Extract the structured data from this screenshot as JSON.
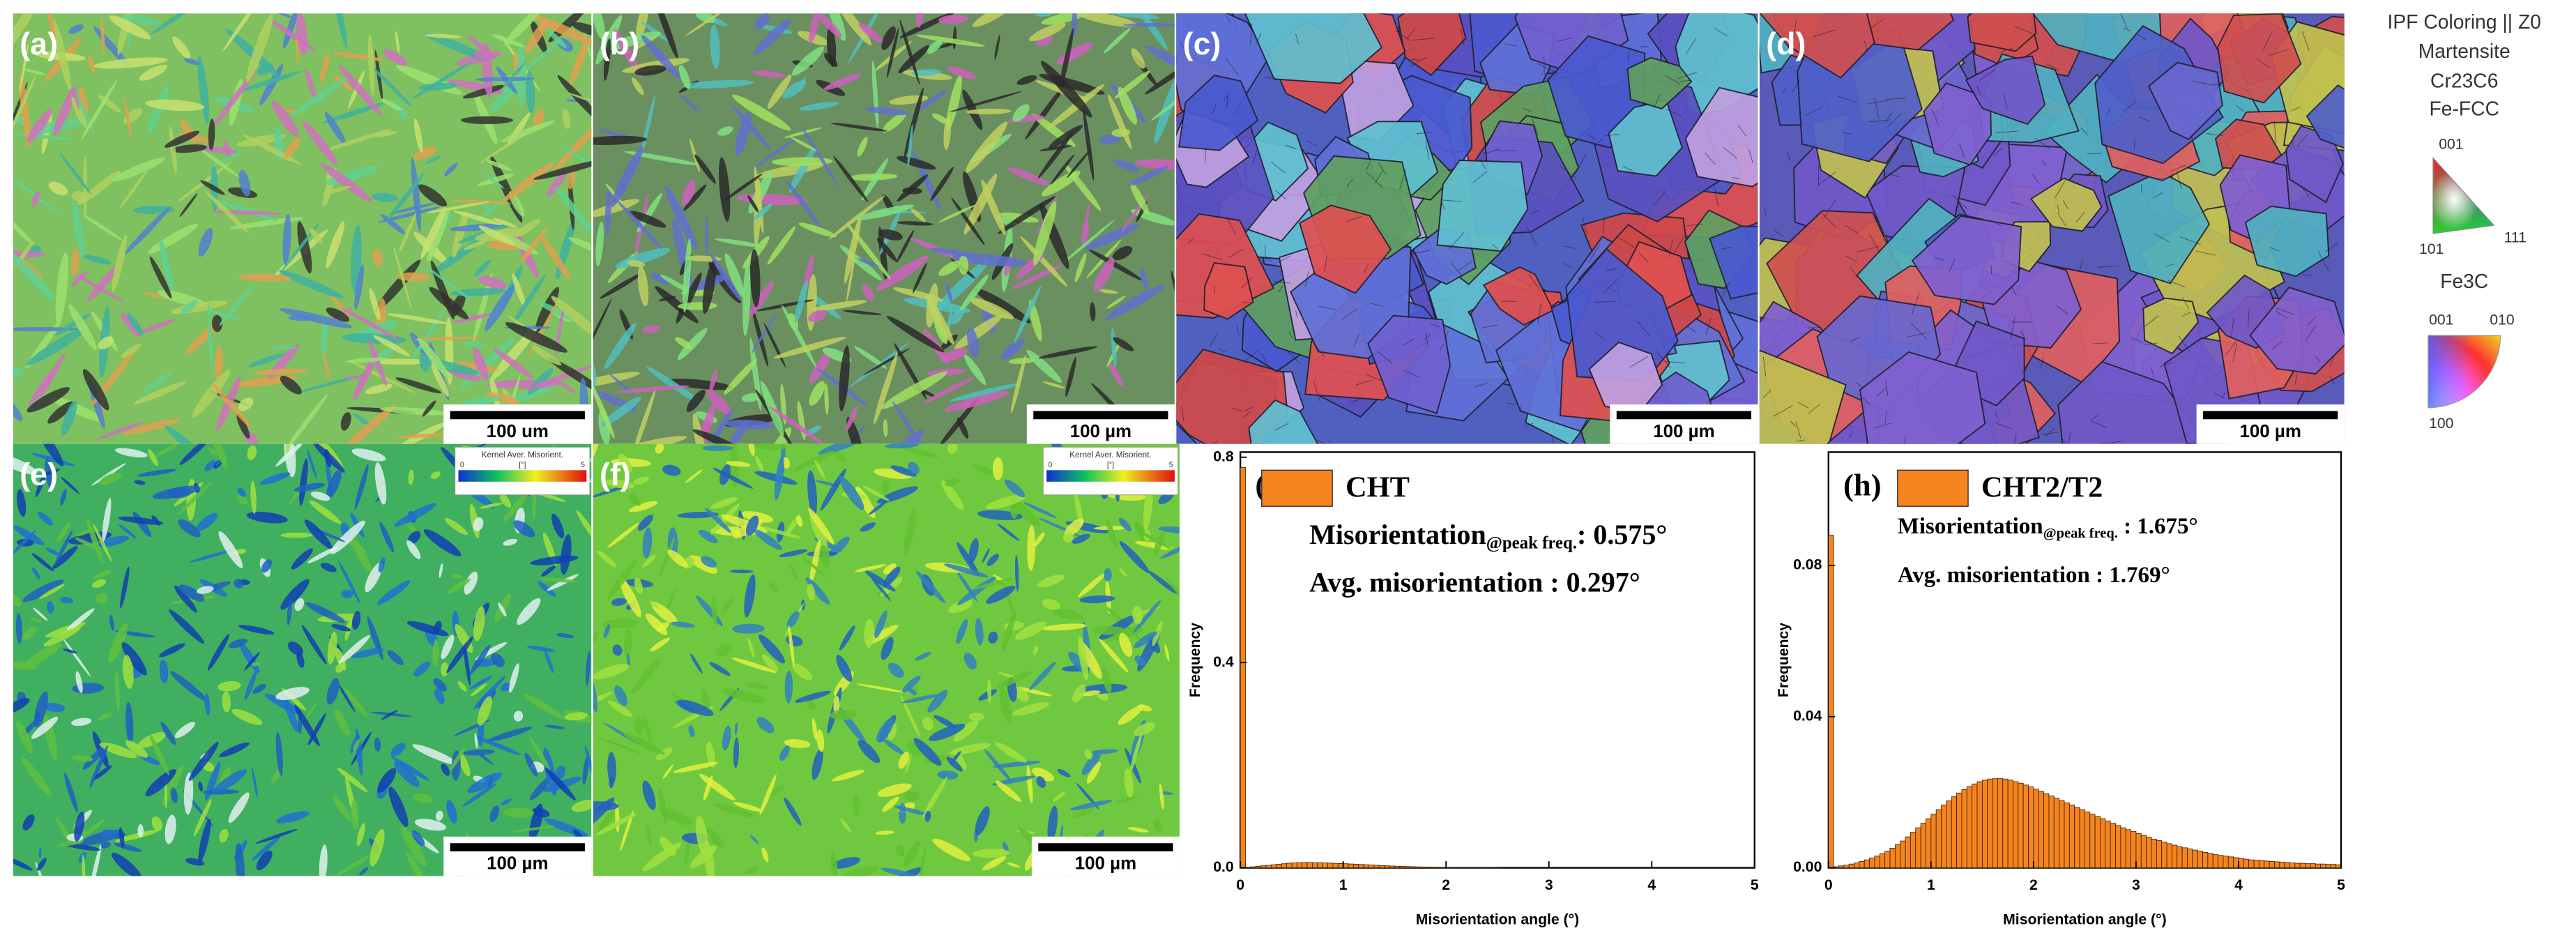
{
  "panels": [
    {
      "label": "(a)",
      "scale_bar": "100 um"
    },
    {
      "label": "(b)",
      "scale_bar": "100 µm"
    },
    {
      "label": "(c)",
      "scale_bar": "100 µm"
    },
    {
      "label": "(d)",
      "scale_bar": "100 µm"
    },
    {
      "label": "(e)",
      "scale_bar": "100 µm"
    },
    {
      "label": "(f)",
      "scale_bar": "100 µm"
    }
  ],
  "kam_legend": {
    "title": "Kernel Aver. Misorient.",
    "unit": "[°]",
    "min": 0,
    "max": 5
  },
  "ipf_legend": {
    "title": "IPF Coloring || Z0",
    "phases": [
      "Martensite",
      "Cr23C6",
      "Fe-FCC"
    ],
    "triangle_labels": [
      "001",
      "101",
      "111"
    ],
    "fe3c": "Fe3C",
    "fe3c_labels": [
      "001",
      "010",
      "100"
    ]
  },
  "chart_data": [
    {
      "type": "histogram",
      "panel_label": "(g)",
      "x_label": "Misorientation angle (°)",
      "y_label": "Frequency",
      "annotations": [
        "Misorientation",
        "@peak freq.",
        ": 0.575°",
        "Avg. misorientation : 0.297°"
      ],
      "bins": [
        0,
        0.05,
        0.1,
        0.15,
        0.2,
        0.25,
        0.3,
        0.35,
        0.4,
        0.45,
        0.5,
        0.55,
        0.6,
        0.65,
        0.7,
        0.75,
        0.8,
        0.85,
        0.9,
        0.95,
        1,
        1.05,
        1.1,
        1.15,
        1.2,
        1.25,
        1.3,
        1.35,
        1.4,
        1.45,
        1.5,
        1.55,
        1.6,
        1.65,
        1.7,
        1.75,
        1.8,
        1.85,
        1.9,
        1.95,
        2,
        2.05,
        2.1,
        2.15,
        2.2,
        2.25,
        2.3,
        2.35,
        2.4,
        2.45,
        2.5,
        2.55,
        2.6,
        2.65,
        2.7,
        2.75,
        2.8,
        2.85,
        2.9,
        2.95,
        3,
        3.05,
        3.1,
        3.15,
        3.2,
        3.25,
        3.3,
        3.35,
        3.4,
        3.45,
        3.5,
        3.55,
        3.6,
        3.65,
        3.7,
        3.75,
        3.8,
        3.85,
        3.9,
        3.95,
        4,
        4.05,
        4.1,
        4.15,
        4.2,
        4.25,
        4.3,
        4.35,
        4.4,
        4.45,
        4.5,
        4.55,
        4.6,
        4.65,
        4.7,
        4.75,
        4.8,
        4.85,
        4.9,
        4.95,
        5
      ],
      "series": [
        {
          "name": "CHT",
          "color": "#f5841f",
          "values": [
            0.78,
            0.001,
            0.002,
            0.003,
            0.004,
            0.005,
            0.006,
            0.007,
            0.008,
            0.009,
            0.0095,
            0.01,
            0.0102,
            0.0102,
            0.01,
            0.0098,
            0.0095,
            0.0092,
            0.0088,
            0.0084,
            0.008,
            0.0075,
            0.007,
            0.0065,
            0.006,
            0.0055,
            0.005,
            0.0045,
            0.004,
            0.0036,
            0.0032,
            0.0028,
            0.0025,
            0.0022,
            0.0019,
            0.0016,
            0.0014,
            0.0012,
            0.001,
            0.0008,
            0.0007,
            0.0006,
            0.0005,
            0.0004,
            0.0003,
            0.0003,
            0.0002,
            0.0002,
            0.0001,
            0.0001,
            0,
            0,
            0,
            0,
            0,
            0,
            0,
            0,
            0,
            0,
            0,
            0,
            0,
            0,
            0,
            0,
            0,
            0,
            0,
            0,
            0,
            0,
            0,
            0,
            0,
            0,
            0,
            0,
            0,
            0,
            0,
            0,
            0,
            0,
            0,
            0,
            0,
            0,
            0,
            0,
            0,
            0,
            0,
            0,
            0,
            0,
            0,
            0,
            0,
            0
          ]
        }
      ],
      "xlim": [
        0,
        5
      ],
      "xticks": [
        0,
        1,
        2,
        3,
        4,
        5
      ],
      "ylim": [
        0,
        0.81
      ],
      "yticks": [
        {
          "value": 0,
          "label": "0.0"
        },
        0.4,
        0.8
      ]
    },
    {
      "type": "histogram",
      "panel_label": "(h)",
      "x_label": "Misorientation angle (°)",
      "y_label": "Frequency",
      "annotations": [
        "Misorientation",
        "@peak freq.",
        " : 1.675°",
        "Avg. misorientation : 1.769°"
      ],
      "bins": [
        0,
        0.05,
        0.1,
        0.15,
        0.2,
        0.25,
        0.3,
        0.35,
        0.4,
        0.45,
        0.5,
        0.55,
        0.6,
        0.65,
        0.7,
        0.75,
        0.8,
        0.85,
        0.9,
        0.95,
        1,
        1.05,
        1.1,
        1.15,
        1.2,
        1.25,
        1.3,
        1.35,
        1.4,
        1.45,
        1.5,
        1.55,
        1.6,
        1.65,
        1.7,
        1.75,
        1.8,
        1.85,
        1.9,
        1.95,
        2,
        2.05,
        2.1,
        2.15,
        2.2,
        2.25,
        2.3,
        2.35,
        2.4,
        2.45,
        2.5,
        2.55,
        2.6,
        2.65,
        2.7,
        2.75,
        2.8,
        2.85,
        2.9,
        2.95,
        3,
        3.05,
        3.1,
        3.15,
        3.2,
        3.25,
        3.3,
        3.35,
        3.4,
        3.45,
        3.5,
        3.55,
        3.6,
        3.65,
        3.7,
        3.75,
        3.8,
        3.85,
        3.9,
        3.95,
        4,
        4.05,
        4.1,
        4.15,
        4.2,
        4.25,
        4.3,
        4.35,
        4.4,
        4.45,
        4.5,
        4.55,
        4.6,
        4.65,
        4.7,
        4.75,
        4.8,
        4.85,
        4.9,
        4.95,
        5
      ],
      "series": [
        {
          "name": "CHT2/T2",
          "color": "#f5841f",
          "values": [
            0.088,
            0.0003,
            0.0005,
            0.0007,
            0.001,
            0.0013,
            0.0017,
            0.0021,
            0.0026,
            0.0031,
            0.0037,
            0.0044,
            0.0052,
            0.0061,
            0.0071,
            0.0082,
            0.0094,
            0.0106,
            0.0118,
            0.013,
            0.0142,
            0.0154,
            0.0166,
            0.0177,
            0.0188,
            0.0198,
            0.0207,
            0.0215,
            0.0222,
            0.0228,
            0.0232,
            0.0235,
            0.0236,
            0.0236,
            0.0235,
            0.0232,
            0.0228,
            0.0224,
            0.0219,
            0.0214,
            0.0208,
            0.0202,
            0.0196,
            0.019,
            0.0184,
            0.0178,
            0.0172,
            0.0166,
            0.016,
            0.0154,
            0.0148,
            0.0142,
            0.0136,
            0.013,
            0.0124,
            0.0118,
            0.0112,
            0.0106,
            0.0101,
            0.0096,
            0.0091,
            0.0086,
            0.0081,
            0.0076,
            0.0072,
            0.0068,
            0.0064,
            0.006,
            0.0056,
            0.0053,
            0.005,
            0.0047,
            0.0044,
            0.0041,
            0.0038,
            0.0035,
            0.0033,
            0.0031,
            0.0029,
            0.0027,
            0.0025,
            0.0023,
            0.0021,
            0.002,
            0.0019,
            0.0018,
            0.0017,
            0.0016,
            0.0015,
            0.0014,
            0.0013,
            0.0012,
            0.0012,
            0.0011,
            0.0011,
            0.001,
            0.001,
            0.0009,
            0.0009,
            0.0008
          ]
        }
      ],
      "xlim": [
        0,
        5
      ],
      "xticks": [
        0,
        1,
        2,
        3,
        4,
        5
      ],
      "ylim": [
        0,
        0.11
      ],
      "yticks": [
        {
          "value": 0,
          "label": "0.00"
        },
        0.04,
        0.08
      ]
    }
  ]
}
